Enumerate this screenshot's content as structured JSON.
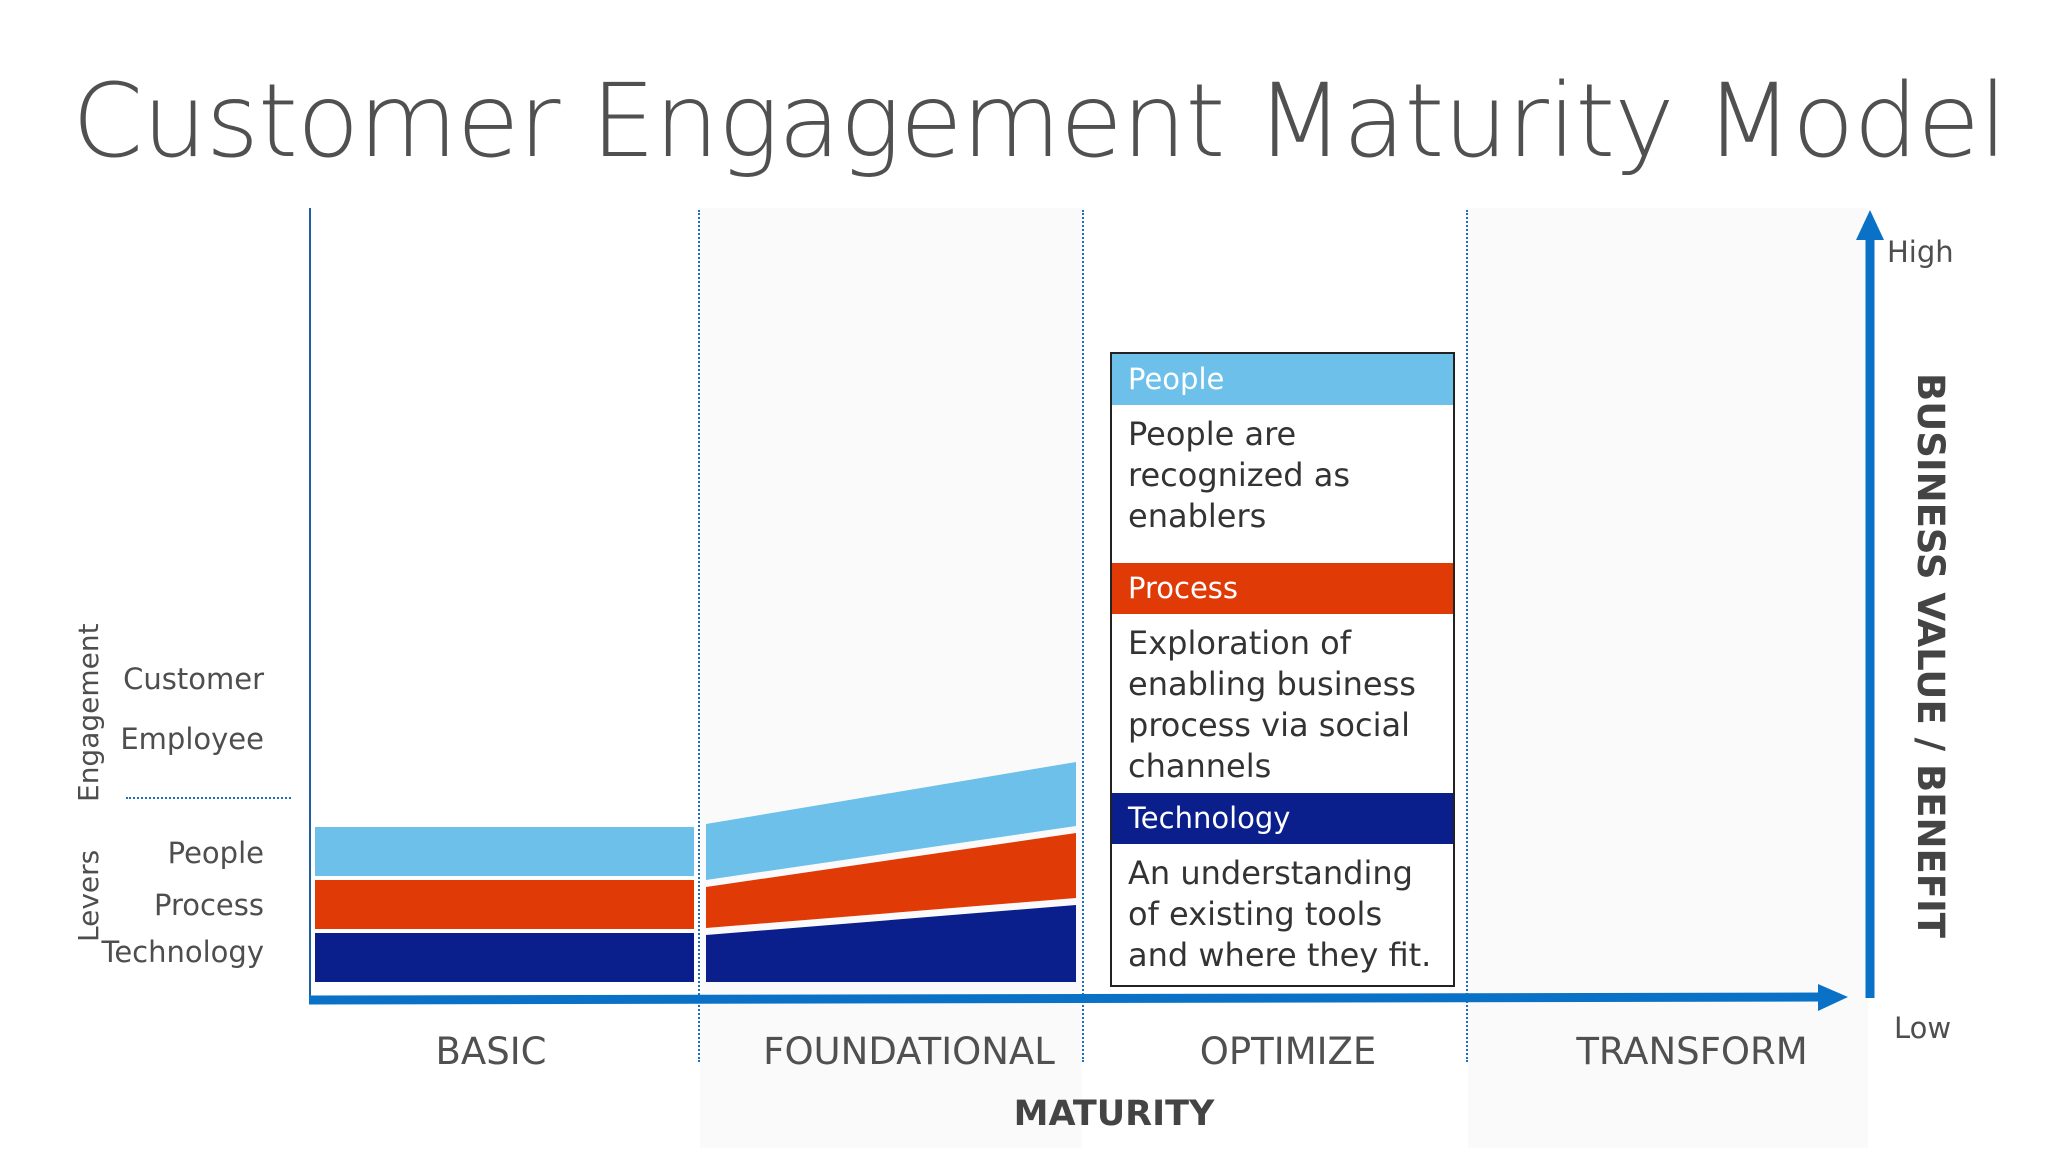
{
  "title": "Customer Engagement Maturity Model",
  "phases": [
    "BASIC",
    "FOUNDATIONAL",
    "OPTIMIZE",
    "TRANSFORM"
  ],
  "x_axis_title": "MATURITY",
  "y_axis_title": "BUSINESS VALUE / BENEFIT",
  "y_axis_high": "High",
  "y_axis_low": "Low",
  "engagement": {
    "group_label": "Engagement",
    "items": [
      "Customer",
      "Employee"
    ]
  },
  "levers": {
    "group_label": "Levers",
    "items": [
      "People",
      "Process",
      "Technology"
    ]
  },
  "colors": {
    "people": "#6cc0ea",
    "process": "#e03a07",
    "technology": "#0b1f8c",
    "axis": "#0a72c6"
  },
  "card": {
    "people_head": "People",
    "people_text": "People are recognized as enablers",
    "process_head": "Process",
    "process_text": "Exploration of enabling business process via social channels",
    "technology_head": "Technology",
    "technology_text": "An understanding of existing tools and where they fit."
  }
}
